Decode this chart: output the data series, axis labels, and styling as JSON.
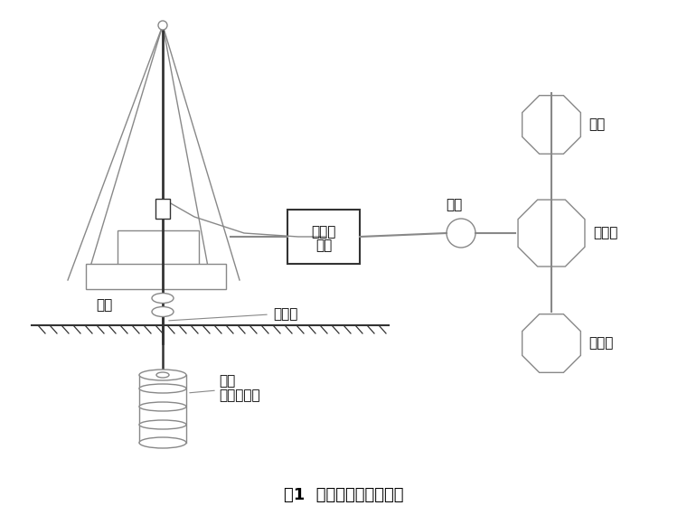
{
  "title": "图1  单管旋喷注浆示意图",
  "title_fontsize": 13,
  "bg_color": "#ffffff",
  "line_color": "#888888",
  "dark_line": "#333333",
  "text_color": "#000000",
  "labels": {
    "drill": "钻机",
    "grout_pipe": "注浆管",
    "nozzle": "喷头",
    "jet_body": "旋喷固结体",
    "pump_line1": "高压泥",
    "pump_line2": "浆泵",
    "slurry_bucket": "浆桶",
    "mixer": "搅拌机",
    "water_tank": "水箱",
    "cement_silo": "水泥仓"
  }
}
